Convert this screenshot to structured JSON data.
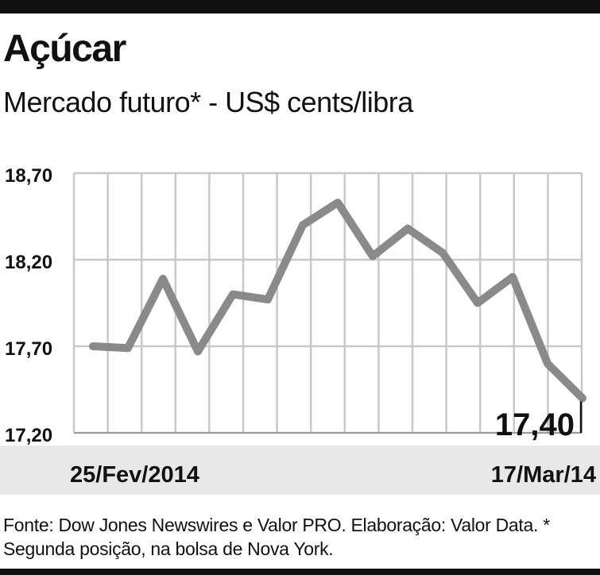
{
  "chart_data": {
    "type": "line",
    "title": "Açúcar",
    "subtitle": "Mercado futuro* - US$ cents/libra",
    "y_ticks": [
      "18,70",
      "18,20",
      "17,70",
      "17,20"
    ],
    "ylim": [
      17.2,
      18.7
    ],
    "x_start_label": "25/Fev/2014",
    "x_end_label": "17/Mar/14",
    "values": [
      17.7,
      17.69,
      18.09,
      17.67,
      18.0,
      17.97,
      18.4,
      18.53,
      18.22,
      18.38,
      18.24,
      17.95,
      18.1,
      17.6,
      17.4
    ],
    "last_value_label": "17,40",
    "grid": true,
    "colors": {
      "line": "#8a8a8a",
      "grid": "#c8c8c8",
      "band": "#e8e8e8",
      "text": "#111111"
    }
  },
  "footer": {
    "source": "Fonte: Dow Jones Newswires e Valor PRO. Elaboração: Valor Data. * Segunda posição, na bolsa de Nova York."
  }
}
